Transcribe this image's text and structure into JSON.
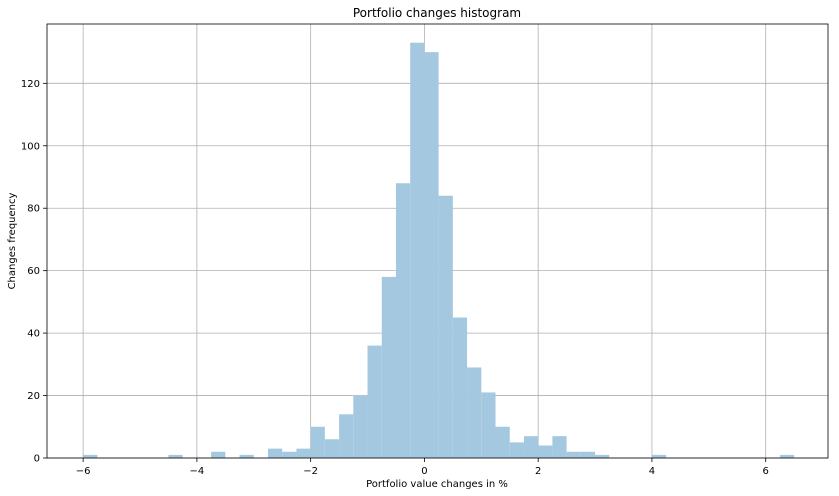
{
  "chart_data": {
    "type": "bar",
    "title": "Portfolio changes histogram",
    "xlabel": "Portfolio value changes in %",
    "ylabel": "Changes frequency",
    "xlim": [
      -6.635,
      7.095
    ],
    "ylim": [
      0,
      139
    ],
    "xticks": [
      -6,
      -4,
      -2,
      0,
      2,
      4,
      6
    ],
    "yticks": [
      0,
      20,
      40,
      60,
      80,
      100,
      120
    ],
    "grid": true,
    "bar_color": "#a4c8e0",
    "bins": [
      {
        "x0": -6.0,
        "x1": -5.75,
        "count": 1
      },
      {
        "x0": -4.5,
        "x1": -4.25,
        "count": 1
      },
      {
        "x0": -3.75,
        "x1": -3.5,
        "count": 2
      },
      {
        "x0": -3.25,
        "x1": -3.0,
        "count": 1
      },
      {
        "x0": -2.75,
        "x1": -2.5,
        "count": 3
      },
      {
        "x0": -2.5,
        "x1": -2.25,
        "count": 2
      },
      {
        "x0": -2.25,
        "x1": -2.0,
        "count": 3
      },
      {
        "x0": -2.0,
        "x1": -1.75,
        "count": 10
      },
      {
        "x0": -1.75,
        "x1": -1.5,
        "count": 6
      },
      {
        "x0": -1.5,
        "x1": -1.25,
        "count": 14
      },
      {
        "x0": -1.25,
        "x1": -1.0,
        "count": 20
      },
      {
        "x0": -1.0,
        "x1": -0.75,
        "count": 36
      },
      {
        "x0": -0.75,
        "x1": -0.5,
        "count": 58
      },
      {
        "x0": -0.5,
        "x1": -0.25,
        "count": 88
      },
      {
        "x0": -0.25,
        "x1": 0.0,
        "count": 133
      },
      {
        "x0": 0.0,
        "x1": 0.25,
        "count": 130
      },
      {
        "x0": 0.25,
        "x1": 0.5,
        "count": 84
      },
      {
        "x0": 0.5,
        "x1": 0.75,
        "count": 45
      },
      {
        "x0": 0.75,
        "x1": 1.0,
        "count": 29
      },
      {
        "x0": 1.0,
        "x1": 1.25,
        "count": 21
      },
      {
        "x0": 1.25,
        "x1": 1.5,
        "count": 10
      },
      {
        "x0": 1.5,
        "x1": 1.75,
        "count": 5
      },
      {
        "x0": 1.75,
        "x1": 2.0,
        "count": 7
      },
      {
        "x0": 2.0,
        "x1": 2.25,
        "count": 4
      },
      {
        "x0": 2.25,
        "x1": 2.5,
        "count": 7
      },
      {
        "x0": 2.5,
        "x1": 2.75,
        "count": 2
      },
      {
        "x0": 2.75,
        "x1": 3.0,
        "count": 2
      },
      {
        "x0": 3.0,
        "x1": 3.25,
        "count": 1
      },
      {
        "x0": 4.0,
        "x1": 4.25,
        "count": 1
      },
      {
        "x0": 6.25,
        "x1": 6.5,
        "count": 1
      }
    ]
  }
}
